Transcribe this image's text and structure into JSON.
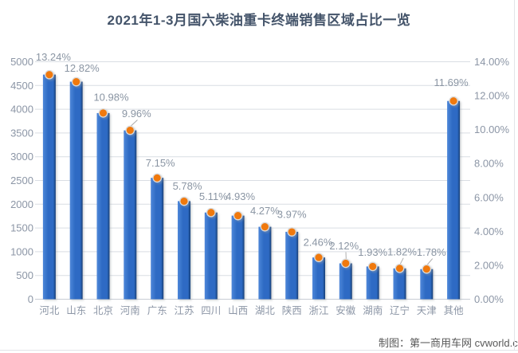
{
  "title": "2021年1-3月国六柴油重卡终端销售区域占比一览",
  "credit": "制图：第一商用车网 cvworld.cn",
  "chart_data": {
    "type": "bar",
    "subtype": "bars-with-percentage-markers",
    "title": "2021年1-3月国六柴油重卡终端销售区域占比一览",
    "categories": [
      "河北",
      "山东",
      "北京",
      "河南",
      "广东",
      "江苏",
      "四川",
      "山西",
      "湖北",
      "陕西",
      "浙江",
      "安徽",
      "湖南",
      "辽宁",
      "天津",
      "其他"
    ],
    "series": [
      {
        "id": "sales-volume-bars-left-axis-estimated",
        "type": "bar",
        "axis": "left",
        "values": [
          4730,
          4580,
          3920,
          3555,
          2555,
          2065,
          1825,
          1760,
          1525,
          1420,
          880,
          755,
          690,
          650,
          635,
          4175
        ]
      },
      {
        "id": "share-percent-markers-right-axis",
        "type": "scatter",
        "axis": "right",
        "values": [
          13.24,
          12.82,
          10.98,
          9.96,
          7.15,
          5.78,
          5.11,
          4.93,
          4.27,
          3.97,
          2.46,
          2.12,
          1.93,
          1.82,
          1.78,
          11.69
        ],
        "labels": [
          "13.24%",
          "12.82%",
          "10.98%",
          "9.96%",
          "7.15%",
          "5.78%",
          "5.11%",
          "4.93%",
          "4.27%",
          "3.97%",
          "2.46%",
          "2.12%",
          "1.93%",
          "1.82%",
          "1.78%",
          "11.69%"
        ]
      }
    ],
    "left_axis": {
      "min": 0,
      "max": 5000,
      "step": 500,
      "tick_labels": [
        "5000",
        "4500",
        "4000",
        "3500",
        "3000",
        "2500",
        "2000",
        "1500",
        "1000",
        "500",
        "0"
      ]
    },
    "right_axis": {
      "min": 0,
      "max": 14,
      "step": 2,
      "tick_labels": [
        "14.00%",
        "12.00%",
        "10.00%",
        "8.00%",
        "6.00%",
        "4.00%",
        "2.00%",
        "0.00%"
      ]
    },
    "grid": true,
    "legend": "none",
    "label_dx": [
      5,
      7,
      10,
      8,
      4,
      4,
      3,
      3,
      0,
      0,
      -1,
      -2,
      0,
      3,
      6,
      -3
    ],
    "label_dy": [
      -22,
      -17,
      -20,
      -21,
      -19,
      -19,
      -20,
      -24,
      -20,
      -22,
      -19,
      -22,
      -18,
      -21,
      -21,
      -23
    ],
    "label_leader": [
      false,
      false,
      false,
      true,
      false,
      false,
      false,
      false,
      false,
      false,
      false,
      true,
      false,
      true,
      true,
      false
    ],
    "colors": {
      "bar": "#2E6BC4",
      "bar_light": "#4E87D9",
      "bar_dark": "#173F77",
      "marker": "#F0790F",
      "marker_ring": "#DADADA",
      "grid": "#D9DDE3",
      "baseline": "#C8CDD4",
      "axis_text": "#8C96A6",
      "data_label_text": "#8A95A3",
      "title_text": "#44546A",
      "credit_text": "#595959",
      "leader": "#A6A6A6"
    }
  }
}
